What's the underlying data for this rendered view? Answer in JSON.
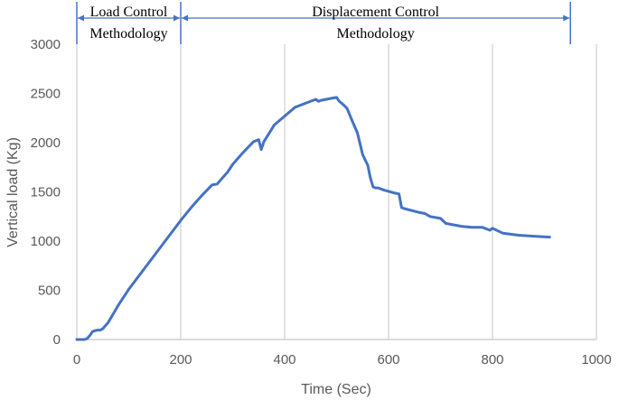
{
  "chart_data": {
    "type": "line",
    "xlabel": "Time (Sec)",
    "ylabel": "Vertical load (Kg)",
    "xlim": [
      0,
      1000
    ],
    "ylim": [
      0,
      3000
    ],
    "x_ticks": [
      "0",
      "200",
      "400",
      "600",
      "800",
      "1000"
    ],
    "y_ticks": [
      "0",
      "500",
      "1000",
      "1500",
      "2000",
      "2500",
      "3000"
    ],
    "grid": "vertical",
    "series_color": "#4472C4",
    "phases": [
      {
        "label_line1": "Load Control",
        "label_line2": "Methodology",
        "x_start": 0,
        "x_end": 200
      },
      {
        "label_line1": "Displacement Control",
        "label_line2": "Methodology",
        "x_start": 200,
        "x_end": 950
      }
    ],
    "series": [
      {
        "x": [
          0,
          15,
          20,
          25,
          30,
          35,
          40,
          45,
          50,
          55,
          60,
          70,
          80,
          90,
          100,
          120,
          140,
          160,
          180,
          200,
          220,
          240,
          260,
          270,
          280,
          290,
          300,
          320,
          340,
          350,
          355,
          360,
          380,
          400,
          420,
          440,
          460,
          465,
          470,
          490,
          500,
          505,
          510,
          520,
          530,
          540,
          550,
          560,
          565,
          570,
          575,
          580,
          590,
          610,
          620,
          625,
          630,
          660,
          670,
          680,
          700,
          710,
          720,
          740,
          760,
          780,
          790,
          795,
          800,
          820,
          850,
          880,
          910
        ],
        "y": [
          0,
          0,
          10,
          40,
          80,
          90,
          95,
          95,
          110,
          140,
          170,
          260,
          350,
          430,
          510,
          650,
          790,
          930,
          1070,
          1210,
          1340,
          1460,
          1570,
          1580,
          1640,
          1700,
          1780,
          1900,
          2010,
          2030,
          1930,
          2010,
          2180,
          2270,
          2360,
          2400,
          2440,
          2420,
          2430,
          2450,
          2460,
          2420,
          2400,
          2350,
          2220,
          2100,
          1880,
          1770,
          1640,
          1550,
          1540,
          1540,
          1520,
          1490,
          1480,
          1340,
          1330,
          1290,
          1280,
          1250,
          1230,
          1180,
          1170,
          1150,
          1140,
          1140,
          1120,
          1110,
          1130,
          1080,
          1060,
          1050,
          1040
        ]
      }
    ]
  }
}
